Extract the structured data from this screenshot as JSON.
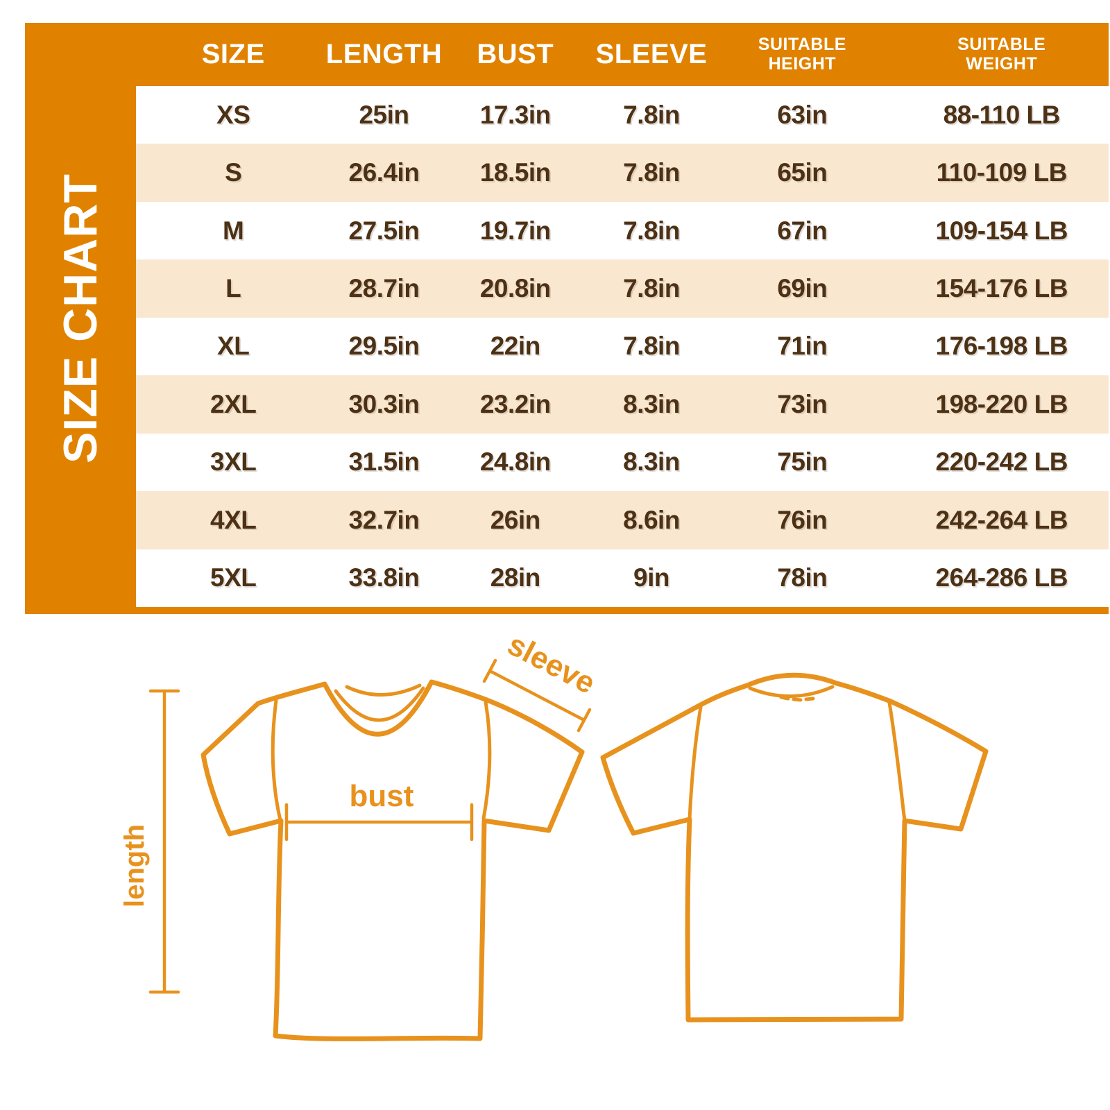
{
  "colors": {
    "orange": "#E08200",
    "orange-draw": "#E8921E",
    "cream": "#FAE7D0",
    "brown": "#4D3115",
    "white": "#FFFFFF"
  },
  "panel": {
    "title": "SIZE CHART"
  },
  "table": {
    "columns": [
      {
        "line1": "SIZE"
      },
      {
        "line1": "LENGTH"
      },
      {
        "line1": "BUST"
      },
      {
        "line1": "SLEEVE"
      },
      {
        "line1": "SUITABLE",
        "line2": "HEIGHT"
      },
      {
        "line1": "SUITABLE",
        "line2": "WEIGHT"
      }
    ]
  },
  "diagram": {
    "labels": {
      "sleeve": "sleeve",
      "bust": "bust",
      "length": "length"
    }
  },
  "chart_data": {
    "type": "table",
    "title": "SIZE CHART",
    "columns": [
      "SIZE",
      "LENGTH",
      "BUST",
      "SLEEVE",
      "SUITABLE HEIGHT",
      "SUITABLE WEIGHT"
    ],
    "rows": [
      [
        "XS",
        "25in",
        "17.3in",
        "7.8in",
        "63in",
        "88-110 LB"
      ],
      [
        "S",
        "26.4in",
        "18.5in",
        "7.8in",
        "65in",
        "110-109 LB"
      ],
      [
        "M",
        "27.5in",
        "19.7in",
        "7.8in",
        "67in",
        "109-154 LB"
      ],
      [
        "L",
        "28.7in",
        "20.8in",
        "7.8in",
        "69in",
        "154-176 LB"
      ],
      [
        "XL",
        "29.5in",
        "22in",
        "7.8in",
        "71in",
        "176-198 LB"
      ],
      [
        "2XL",
        "30.3in",
        "23.2in",
        "8.3in",
        "73in",
        "198-220 LB"
      ],
      [
        "3XL",
        "31.5in",
        "24.8in",
        "8.3in",
        "75in",
        "220-242 LB"
      ],
      [
        "4XL",
        "32.7in",
        "26in",
        "8.6in",
        "76in",
        "242-264 LB"
      ],
      [
        "5XL",
        "33.8in",
        "28in",
        "9in",
        "78in",
        "264-286 LB"
      ]
    ]
  }
}
